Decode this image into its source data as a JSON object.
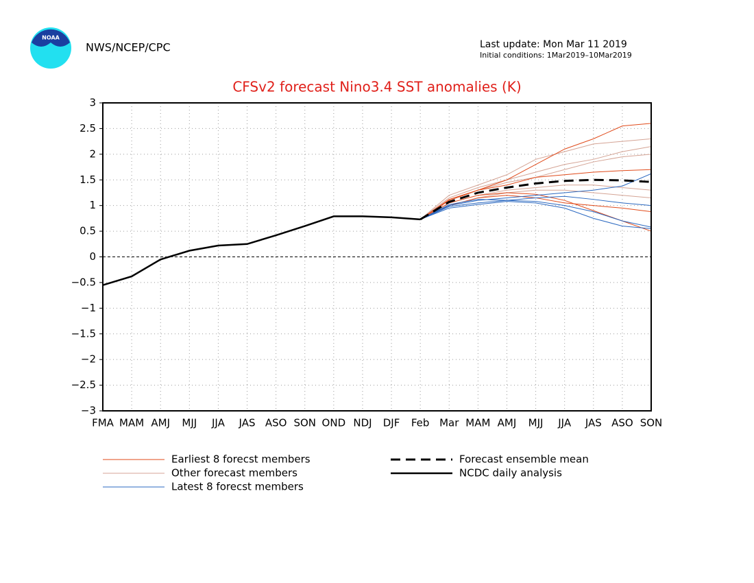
{
  "header": {
    "agency": "NWS/NCEP/CPC",
    "logo_text": "NOAA",
    "last_update": "Last update: Mon Mar 11 2019",
    "initial_conditions": "Initial conditions: 1Mar2019–10Mar2019"
  },
  "chart_data": {
    "type": "line",
    "title": "CFSv2 forecast Nino3.4 SST anomalies (K)",
    "categories": [
      "FMA",
      "MAM",
      "AMJ",
      "MJJ",
      "JJA",
      "JAS",
      "ASO",
      "SON",
      "OND",
      "NDJ",
      "DJF",
      "Feb",
      "Mar",
      "MAM",
      "AMJ",
      "MJJ",
      "JJA",
      "JAS",
      "ASO",
      "SON"
    ],
    "ylim": [
      -3,
      3
    ],
    "yticks": [
      {
        "value": -3,
        "label": "−3"
      },
      {
        "value": -2.5,
        "label": "−2.5"
      },
      {
        "value": -2,
        "label": "−2"
      },
      {
        "value": -1.5,
        "label": "−1.5"
      },
      {
        "value": -1,
        "label": "−1"
      },
      {
        "value": -0.5,
        "label": "−0.5"
      },
      0,
      0.5,
      1,
      1.5,
      2,
      2.5,
      3
    ],
    "grid": true,
    "series": [
      {
        "name": "Other forecast members",
        "color": "#d4a394",
        "style": "thin",
        "members": [
          [
            null,
            null,
            null,
            null,
            null,
            null,
            null,
            null,
            null,
            null,
            null,
            0.73,
            1.2,
            1.4,
            1.6,
            1.9,
            2.05,
            2.2,
            2.25,
            2.3
          ],
          [
            null,
            null,
            null,
            null,
            null,
            null,
            null,
            null,
            null,
            null,
            null,
            0.73,
            1.1,
            1.3,
            1.45,
            1.55,
            1.7,
            1.85,
            1.95,
            2.0
          ],
          [
            null,
            null,
            null,
            null,
            null,
            null,
            null,
            null,
            null,
            null,
            null,
            0.73,
            1.05,
            1.2,
            1.3,
            1.35,
            1.4,
            1.4,
            1.35,
            1.3
          ],
          [
            null,
            null,
            null,
            null,
            null,
            null,
            null,
            null,
            null,
            null,
            null,
            0.73,
            1.15,
            1.35,
            1.5,
            1.65,
            1.8,
            1.9,
            2.05,
            2.15
          ],
          [
            null,
            null,
            null,
            null,
            null,
            null,
            null,
            null,
            null,
            null,
            null,
            0.73,
            1.0,
            1.15,
            1.25,
            1.3,
            1.3,
            1.25,
            1.2,
            1.15
          ]
        ]
      },
      {
        "name": "Earliest 8 forecst members",
        "color": "#e04a1a",
        "style": "thin",
        "members": [
          [
            null,
            null,
            null,
            null,
            null,
            null,
            null,
            null,
            null,
            null,
            null,
            0.73,
            1.1,
            1.3,
            1.5,
            1.8,
            2.1,
            2.3,
            2.55,
            2.6
          ],
          [
            null,
            null,
            null,
            null,
            null,
            null,
            null,
            null,
            null,
            null,
            null,
            0.73,
            1.05,
            1.2,
            1.25,
            1.22,
            1.1,
            0.9,
            0.7,
            0.5
          ],
          [
            null,
            null,
            null,
            null,
            null,
            null,
            null,
            null,
            null,
            null,
            null,
            0.73,
            1.12,
            1.3,
            1.4,
            1.55,
            1.6,
            1.65,
            1.68,
            1.7
          ],
          [
            null,
            null,
            null,
            null,
            null,
            null,
            null,
            null,
            null,
            null,
            null,
            0.73,
            1.0,
            1.15,
            1.2,
            1.15,
            1.05,
            1.0,
            0.95,
            0.88
          ]
        ]
      },
      {
        "name": "Latest 8 forecst members",
        "color": "#2a68c0",
        "style": "thin",
        "members": [
          [
            null,
            null,
            null,
            null,
            null,
            null,
            null,
            null,
            null,
            null,
            null,
            0.73,
            0.95,
            1.02,
            1.08,
            1.05,
            0.95,
            0.75,
            0.6,
            0.55
          ],
          [
            null,
            null,
            null,
            null,
            null,
            null,
            null,
            null,
            null,
            null,
            null,
            0.73,
            1.0,
            1.1,
            1.15,
            1.2,
            1.25,
            1.3,
            1.38,
            1.62
          ],
          [
            null,
            null,
            null,
            null,
            null,
            null,
            null,
            null,
            null,
            null,
            null,
            0.73,
            1.02,
            1.12,
            1.1,
            1.15,
            1.18,
            1.12,
            1.05,
            1.0
          ],
          [
            null,
            null,
            null,
            null,
            null,
            null,
            null,
            null,
            null,
            null,
            null,
            0.73,
            0.98,
            1.05,
            1.1,
            1.08,
            1.0,
            0.88,
            0.7,
            0.58
          ]
        ]
      },
      {
        "name": "Forecast ensemble mean",
        "color": "#000000",
        "style": "dashed",
        "values": [
          null,
          null,
          null,
          null,
          null,
          null,
          null,
          null,
          null,
          null,
          null,
          0.73,
          1.07,
          1.25,
          1.35,
          1.43,
          1.48,
          1.5,
          1.49,
          1.46
        ]
      },
      {
        "name": "NCDC daily analysis",
        "color": "#000000",
        "style": "solid",
        "values": [
          -0.55,
          -0.38,
          -0.05,
          0.12,
          0.22,
          0.25,
          0.42,
          0.6,
          0.79,
          0.79,
          0.77,
          0.73,
          null,
          null,
          null,
          null,
          null,
          null,
          null,
          null
        ]
      }
    ]
  }
}
